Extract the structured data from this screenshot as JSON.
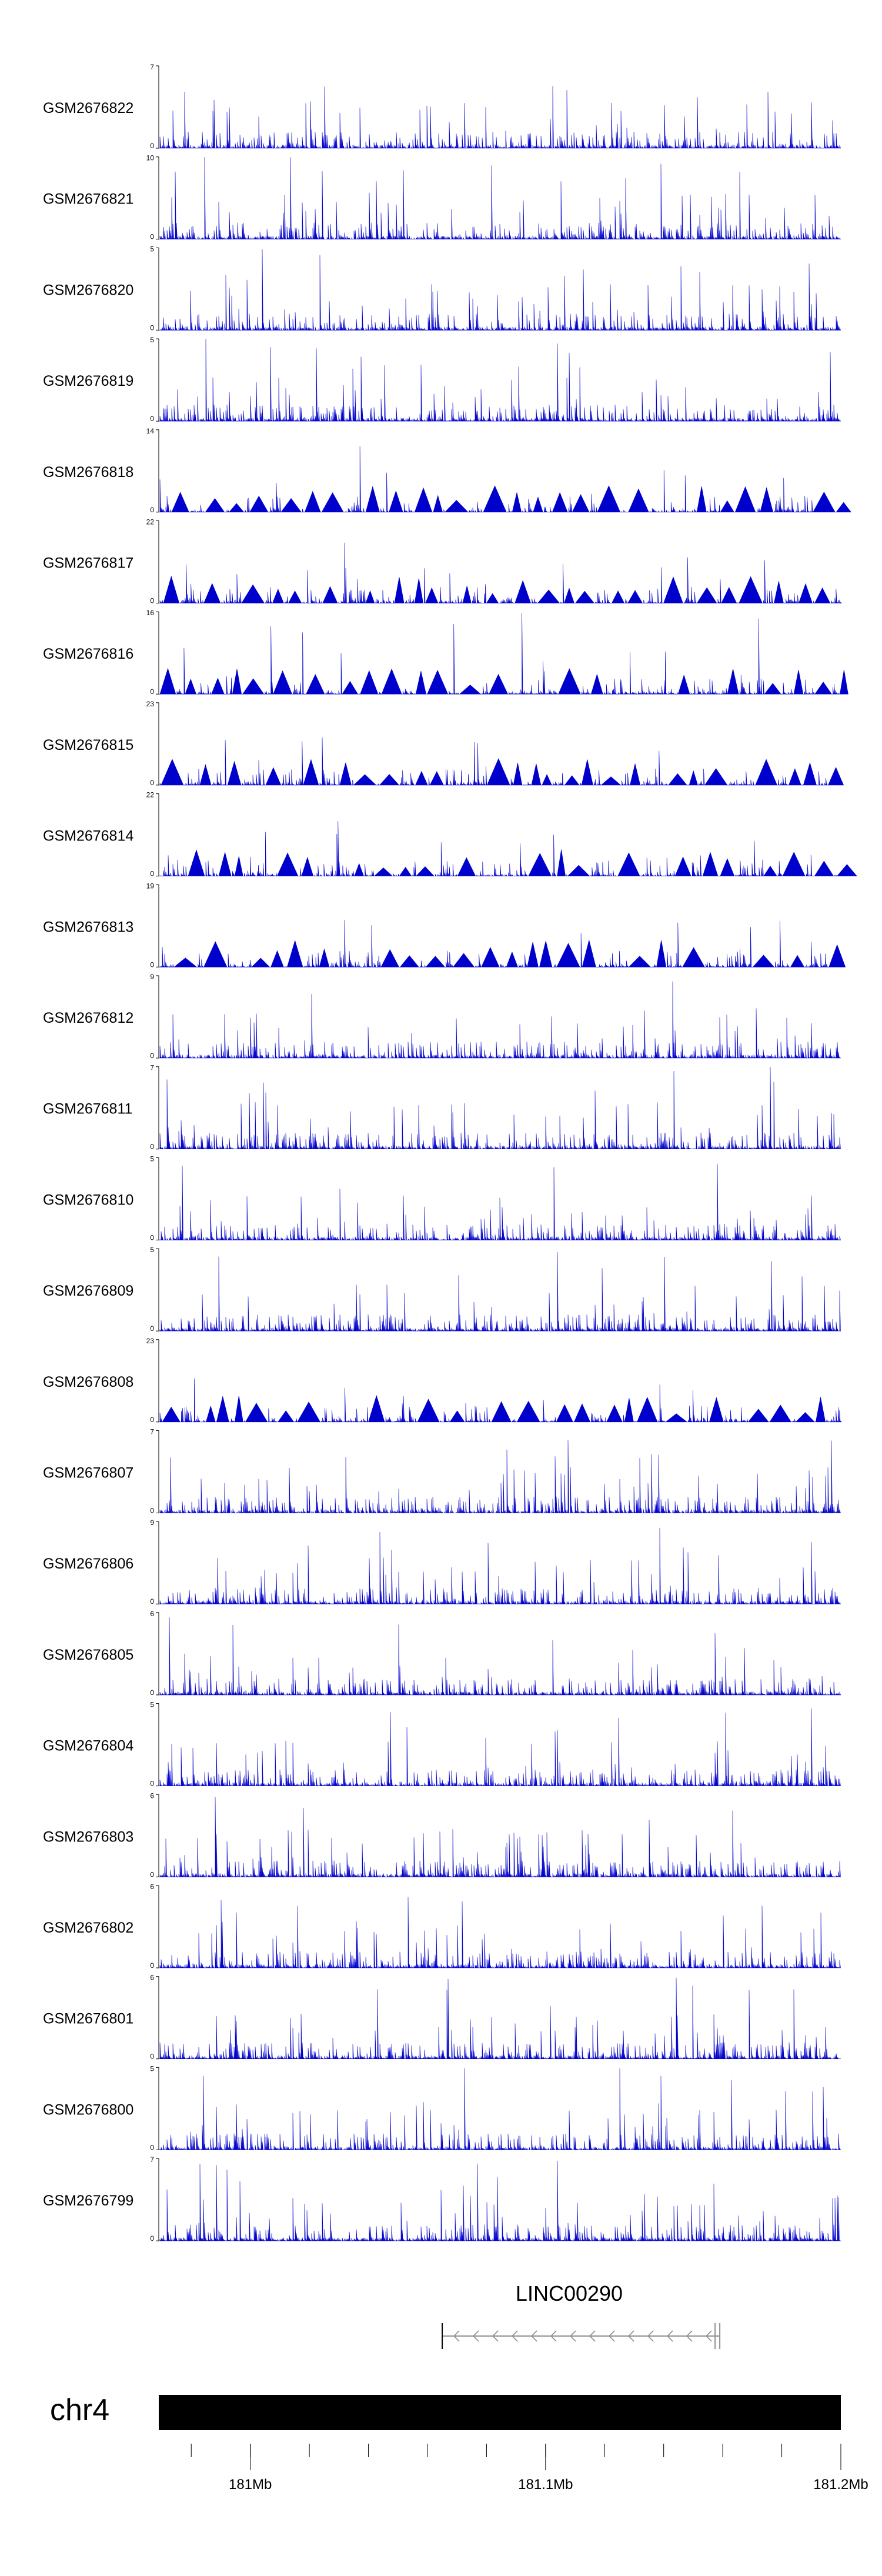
{
  "chart_data": {
    "type": "area",
    "tracks": [
      {
        "name": "GSM2676822",
        "ymin": "0",
        "ymax": "7"
      },
      {
        "name": "GSM2676821",
        "ymin": "0",
        "ymax": "10"
      },
      {
        "name": "GSM2676820",
        "ymin": "0",
        "ymax": "5"
      },
      {
        "name": "GSM2676819",
        "ymin": "0",
        "ymax": "5"
      },
      {
        "name": "GSM2676818",
        "ymin": "0",
        "ymax": "14"
      },
      {
        "name": "GSM2676817",
        "ymin": "0",
        "ymax": "22"
      },
      {
        "name": "GSM2676816",
        "ymin": "0",
        "ymax": "16"
      },
      {
        "name": "GSM2676815",
        "ymin": "0",
        "ymax": "23"
      },
      {
        "name": "GSM2676814",
        "ymin": "0",
        "ymax": "22"
      },
      {
        "name": "GSM2676813",
        "ymin": "0",
        "ymax": "19"
      },
      {
        "name": "GSM2676812",
        "ymin": "0",
        "ymax": "9"
      },
      {
        "name": "GSM2676811",
        "ymin": "0",
        "ymax": "7"
      },
      {
        "name": "GSM2676810",
        "ymin": "0",
        "ymax": "5"
      },
      {
        "name": "GSM2676809",
        "ymin": "0",
        "ymax": "5"
      },
      {
        "name": "GSM2676808",
        "ymin": "0",
        "ymax": "23"
      },
      {
        "name": "GSM2676807",
        "ymin": "0",
        "ymax": "7"
      },
      {
        "name": "GSM2676806",
        "ymin": "0",
        "ymax": "9"
      },
      {
        "name": "GSM2676805",
        "ymin": "0",
        "ymax": "6"
      },
      {
        "name": "GSM2676804",
        "ymin": "0",
        "ymax": "5"
      },
      {
        "name": "GSM2676803",
        "ymin": "0",
        "ymax": "6"
      },
      {
        "name": "GSM2676802",
        "ymin": "0",
        "ymax": "6"
      },
      {
        "name": "GSM2676801",
        "ymin": "0",
        "ymax": "6"
      },
      {
        "name": "GSM2676800",
        "ymin": "0",
        "ymax": "5"
      },
      {
        "name": "GSM2676799",
        "ymin": "0",
        "ymax": "7"
      }
    ],
    "gene": {
      "name": "LINC00290",
      "strand": "-",
      "start_mb": 181.065,
      "end_mb": 181.159
    },
    "chromosome": "chr4",
    "axis": {
      "start_mb": 180.969,
      "end_mb": 181.2,
      "minor_ticks_mb": [
        180.98,
        181.0,
        181.02,
        181.04,
        181.06,
        181.08,
        181.1,
        181.12,
        181.14,
        181.16,
        181.18,
        181.2
      ],
      "labels": [
        {
          "value_mb": 181.0,
          "text": "181Mb"
        },
        {
          "value_mb": 181.1,
          "text": "181.1Mb"
        },
        {
          "value_mb": 181.2,
          "text": "181.2Mb"
        }
      ]
    },
    "colors": {
      "signal": "#0000cc",
      "ideogram": "#000000",
      "gene": "#909090",
      "axis": "#000000"
    }
  }
}
